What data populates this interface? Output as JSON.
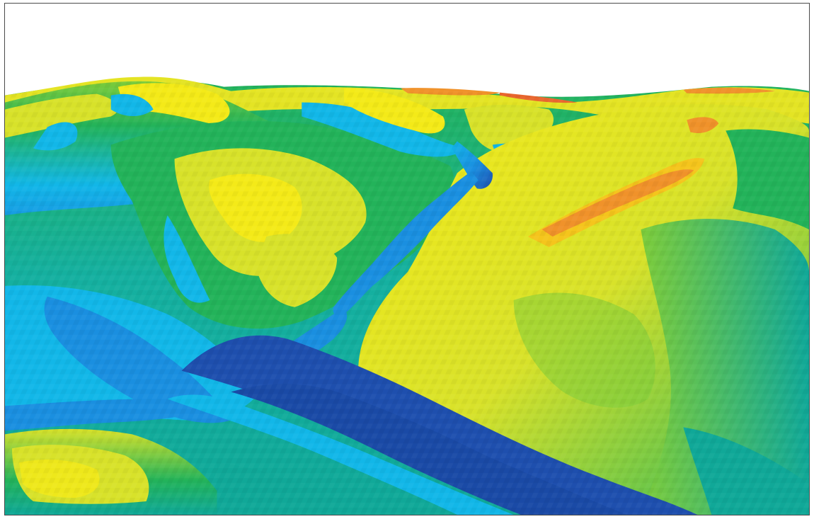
{
  "figure": {
    "kind": "3d-terrain-elevation-render",
    "colormap": [
      "#1e4fae",
      "#1a8fe0",
      "#12b7e8",
      "#10a898",
      "#23b35a",
      "#7dcc3a",
      "#d8e22a",
      "#f4ea18",
      "#f5c51c",
      "#f0922a",
      "#e8662e"
    ],
    "sky_color": "#ffffff",
    "border_color": "#4a4a4a",
    "features": {
      "main_channel": "stream-valley",
      "tributary": "side-valley",
      "ridges": [
        "right-ridge",
        "left-ridge",
        "back-ridge"
      ],
      "high_points": "orange-crest"
    }
  }
}
